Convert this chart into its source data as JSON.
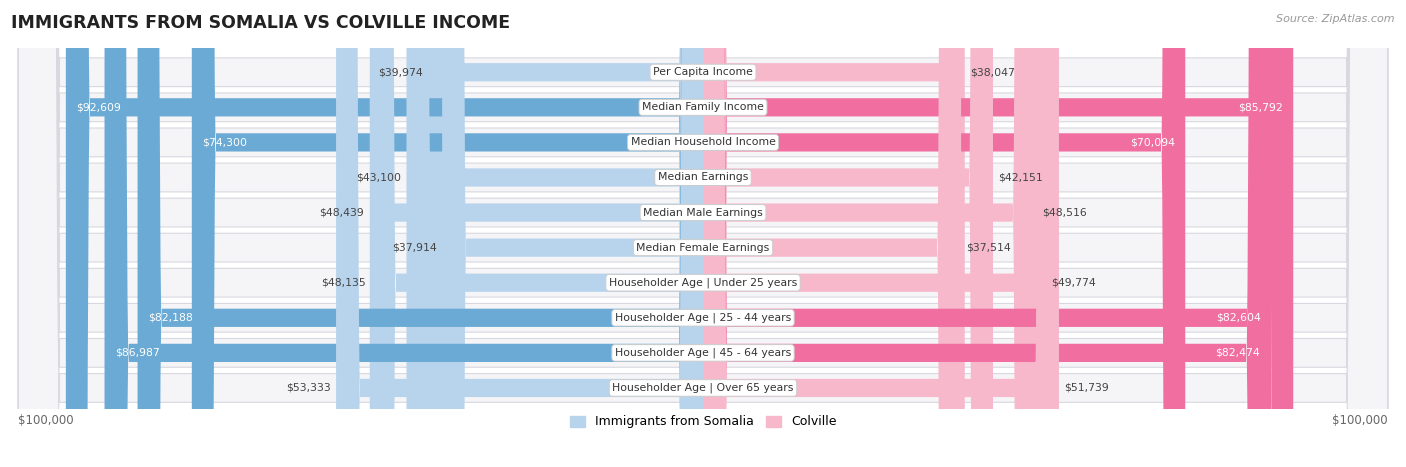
{
  "title": "IMMIGRANTS FROM SOMALIA VS COLVILLE INCOME",
  "source": "Source: ZipAtlas.com",
  "categories": [
    "Per Capita Income",
    "Median Family Income",
    "Median Household Income",
    "Median Earnings",
    "Median Male Earnings",
    "Median Female Earnings",
    "Householder Age | Under 25 years",
    "Householder Age | 25 - 44 years",
    "Householder Age | 45 - 64 years",
    "Householder Age | Over 65 years"
  ],
  "somalia_values": [
    39974,
    92609,
    74300,
    43100,
    48439,
    37914,
    48135,
    82188,
    86987,
    53333
  ],
  "colville_values": [
    38047,
    85792,
    70094,
    42151,
    48516,
    37514,
    49774,
    82604,
    82474,
    51739
  ],
  "somalia_labels": [
    "$39,974",
    "$92,609",
    "$74,300",
    "$43,100",
    "$48,439",
    "$37,914",
    "$48,135",
    "$82,188",
    "$86,987",
    "$53,333"
  ],
  "colville_labels": [
    "$38,047",
    "$85,792",
    "$70,094",
    "$42,151",
    "$48,516",
    "$37,514",
    "$49,774",
    "$82,604",
    "$82,474",
    "$51,739"
  ],
  "max_value": 100000,
  "somalia_color_light": "#b8d4ec",
  "somalia_color_strong": "#6aaad4",
  "colville_color_light": "#f7b8cc",
  "colville_color_strong": "#f06fa0",
  "row_bg": "#f5f5f7",
  "row_border": "#d8d8e0",
  "label_left": "$100,000",
  "label_right": "$100,000",
  "legend_somalia": "Immigrants from Somalia",
  "legend_colville": "Colville",
  "strong_threshold": 0.58
}
